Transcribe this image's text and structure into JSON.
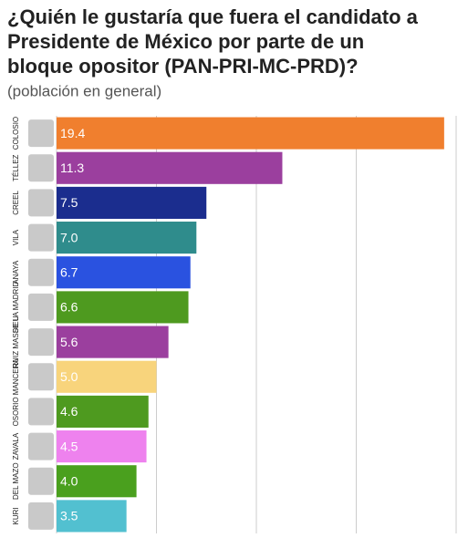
{
  "chart_data": {
    "type": "barh",
    "title": [
      "¿Quién le gustaría que fuera el candidato a",
      "Presidente de México por parte de un",
      "bloque opositor (PAN-PRI-MC-PRD)?"
    ],
    "subtitle": "(población en general)",
    "categories": [
      "COLOSIO",
      "TÉLLEZ",
      "CREEL",
      "VILA",
      "ANAYA",
      "DE LA MADRID",
      "RUIZ MASSIEU",
      "MANCERA",
      "OSORIO",
      "ZAVALA",
      "DEL MAZO",
      "KURI"
    ],
    "values": [
      19.4,
      11.3,
      7.5,
      7.0,
      6.7,
      6.6,
      5.6,
      5.0,
      4.6,
      4.5,
      4.0,
      3.5
    ],
    "value_labels": [
      "19.4",
      "11.3",
      "7.5",
      "7.0",
      "6.7",
      "6.6",
      "5.6",
      "5.0",
      "4.6",
      "4.5",
      "4.0",
      "3.5"
    ],
    "colors": [
      "#f07f2e",
      "#9b3f9e",
      "#1b2d8e",
      "#2f8c8c",
      "#2a52e0",
      "#4e9a1f",
      "#9b3f9e",
      "#f8d47c",
      "#4e9a1f",
      "#ee82ee",
      "#4aa01e",
      "#52c0d0"
    ],
    "xlim": [
      0,
      20
    ],
    "xticks": [
      0,
      5,
      10,
      15,
      20
    ],
    "grid": true
  }
}
